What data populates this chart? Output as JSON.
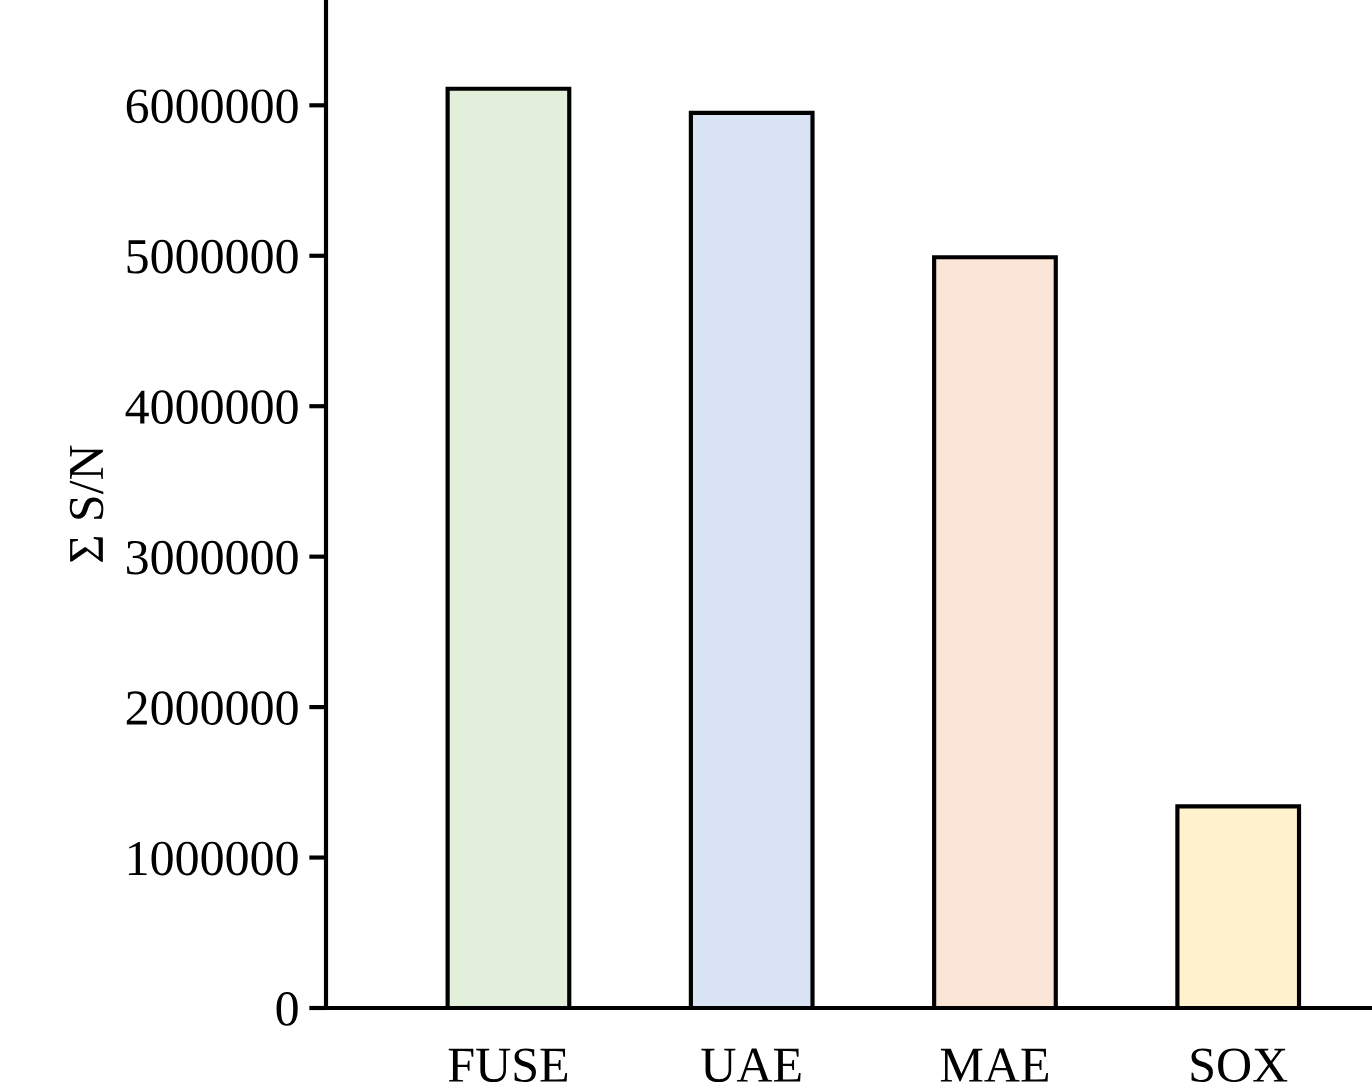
{
  "chart_data": {
    "type": "bar",
    "ylabel": "Σ S/N",
    "categories": [
      "FUSE",
      "UAE",
      "MAE",
      "SOX"
    ],
    "values": [
      6110000,
      5950000,
      4990000,
      1340000
    ],
    "colors": [
      "#e2efda",
      "#dae3f3",
      "#fbe5d6",
      "#fff2cc"
    ],
    "ylim": [
      0,
      6700000
    ],
    "yticks": [
      0,
      1000000,
      2000000,
      3000000,
      4000000,
      5000000,
      6000000
    ],
    "grid": false,
    "legend": false
  }
}
